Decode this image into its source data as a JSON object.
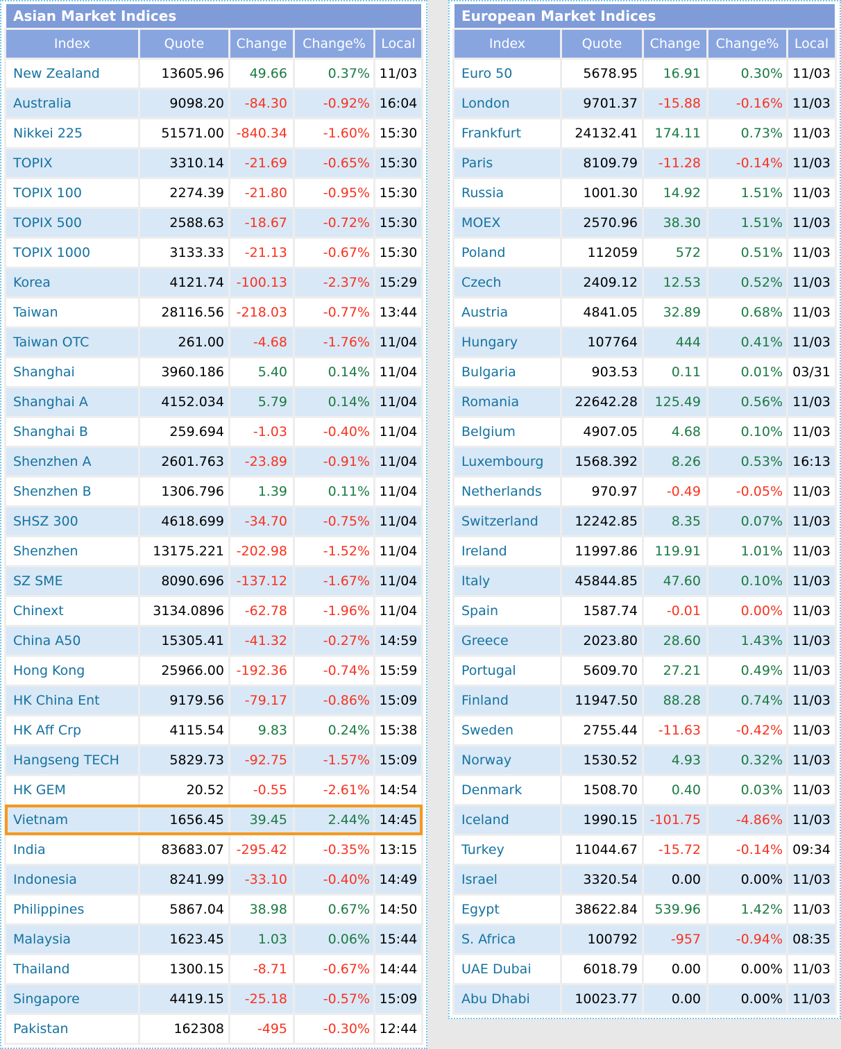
{
  "colors": {
    "page_bg": "#e8e8e8",
    "panel_border": "#6fc4e9",
    "title_bar_bg": "#7f9bd8",
    "header_bg": "#88a5e0",
    "stripe_bg": "#d9e8f6",
    "row_bg": "#ffffff",
    "grid_gap": "#ededed",
    "index_link": "#1472a0",
    "positive": "#1a7a42",
    "negative": "#f8321f",
    "neutral": "#000000",
    "highlight_border": "#f5991c"
  },
  "tables": [
    {
      "title": "Asian Market Indices",
      "columns": [
        "Index",
        "Quote",
        "Change",
        "Change%",
        "Local"
      ],
      "highlighted_index": "Vietnam",
      "rows": [
        {
          "index": "New Zealand",
          "quote": "13605.96",
          "change": "49.66",
          "change_pct": "0.37%",
          "local": "11/03",
          "dir": "up"
        },
        {
          "index": "Australia",
          "quote": "9098.20",
          "change": "-84.30",
          "change_pct": "-0.92%",
          "local": "16:04",
          "dir": "down"
        },
        {
          "index": "Nikkei 225",
          "quote": "51571.00",
          "change": "-840.34",
          "change_pct": "-1.60%",
          "local": "15:30",
          "dir": "down"
        },
        {
          "index": "TOPIX",
          "quote": "3310.14",
          "change": "-21.69",
          "change_pct": "-0.65%",
          "local": "15:30",
          "dir": "down"
        },
        {
          "index": "TOPIX 100",
          "quote": "2274.39",
          "change": "-21.80",
          "change_pct": "-0.95%",
          "local": "15:30",
          "dir": "down"
        },
        {
          "index": "TOPIX 500",
          "quote": "2588.63",
          "change": "-18.67",
          "change_pct": "-0.72%",
          "local": "15:30",
          "dir": "down"
        },
        {
          "index": "TOPIX 1000",
          "quote": "3133.33",
          "change": "-21.13",
          "change_pct": "-0.67%",
          "local": "15:30",
          "dir": "down"
        },
        {
          "index": "Korea",
          "quote": "4121.74",
          "change": "-100.13",
          "change_pct": "-2.37%",
          "local": "15:29",
          "dir": "down"
        },
        {
          "index": "Taiwan",
          "quote": "28116.56",
          "change": "-218.03",
          "change_pct": "-0.77%",
          "local": "13:44",
          "dir": "down"
        },
        {
          "index": "Taiwan OTC",
          "quote": "261.00",
          "change": "-4.68",
          "change_pct": "-1.76%",
          "local": "11/04",
          "dir": "down"
        },
        {
          "index": "Shanghai",
          "quote": "3960.186",
          "change": "5.40",
          "change_pct": "0.14%",
          "local": "11/04",
          "dir": "up"
        },
        {
          "index": "Shanghai A",
          "quote": "4152.034",
          "change": "5.79",
          "change_pct": "0.14%",
          "local": "11/04",
          "dir": "up"
        },
        {
          "index": "Shanghai B",
          "quote": "259.694",
          "change": "-1.03",
          "change_pct": "-0.40%",
          "local": "11/04",
          "dir": "down"
        },
        {
          "index": "Shenzhen A",
          "quote": "2601.763",
          "change": "-23.89",
          "change_pct": "-0.91%",
          "local": "11/04",
          "dir": "down"
        },
        {
          "index": "Shenzhen B",
          "quote": "1306.796",
          "change": "1.39",
          "change_pct": "0.11%",
          "local": "11/04",
          "dir": "up"
        },
        {
          "index": "SHSZ 300",
          "quote": "4618.699",
          "change": "-34.70",
          "change_pct": "-0.75%",
          "local": "11/04",
          "dir": "down"
        },
        {
          "index": "Shenzhen",
          "quote": "13175.221",
          "change": "-202.98",
          "change_pct": "-1.52%",
          "local": "11/04",
          "dir": "down"
        },
        {
          "index": "SZ SME",
          "quote": "8090.696",
          "change": "-137.12",
          "change_pct": "-1.67%",
          "local": "11/04",
          "dir": "down"
        },
        {
          "index": "Chinext",
          "quote": "3134.0896",
          "change": "-62.78",
          "change_pct": "-1.96%",
          "local": "11/04",
          "dir": "down"
        },
        {
          "index": "China A50",
          "quote": "15305.41",
          "change": "-41.32",
          "change_pct": "-0.27%",
          "local": "14:59",
          "dir": "down"
        },
        {
          "index": "Hong Kong",
          "quote": "25966.00",
          "change": "-192.36",
          "change_pct": "-0.74%",
          "local": "15:59",
          "dir": "down"
        },
        {
          "index": "HK China Ent",
          "quote": "9179.56",
          "change": "-79.17",
          "change_pct": "-0.86%",
          "local": "15:09",
          "dir": "down"
        },
        {
          "index": "HK Aff Crp",
          "quote": "4115.54",
          "change": "9.83",
          "change_pct": "0.24%",
          "local": "15:38",
          "dir": "up"
        },
        {
          "index": "Hangseng TECH",
          "quote": "5829.73",
          "change": "-92.75",
          "change_pct": "-1.57%",
          "local": "15:09",
          "dir": "down"
        },
        {
          "index": "HK GEM",
          "quote": "20.52",
          "change": "-0.55",
          "change_pct": "-2.61%",
          "local": "14:54",
          "dir": "down"
        },
        {
          "index": "Vietnam",
          "quote": "1656.45",
          "change": "39.45",
          "change_pct": "2.44%",
          "local": "14:45",
          "dir": "up"
        },
        {
          "index": "India",
          "quote": "83683.07",
          "change": "-295.42",
          "change_pct": "-0.35%",
          "local": "13:15",
          "dir": "down"
        },
        {
          "index": "Indonesia",
          "quote": "8241.99",
          "change": "-33.10",
          "change_pct": "-0.40%",
          "local": "14:49",
          "dir": "down"
        },
        {
          "index": "Philippines",
          "quote": "5867.04",
          "change": "38.98",
          "change_pct": "0.67%",
          "local": "14:50",
          "dir": "up"
        },
        {
          "index": "Malaysia",
          "quote": "1623.45",
          "change": "1.03",
          "change_pct": "0.06%",
          "local": "15:44",
          "dir": "up"
        },
        {
          "index": "Thailand",
          "quote": "1300.15",
          "change": "-8.71",
          "change_pct": "-0.67%",
          "local": "14:44",
          "dir": "down"
        },
        {
          "index": "Singapore",
          "quote": "4419.15",
          "change": "-25.18",
          "change_pct": "-0.57%",
          "local": "15:09",
          "dir": "down"
        },
        {
          "index": "Pakistan",
          "quote": "162308",
          "change": "-495",
          "change_pct": "-0.30%",
          "local": "12:44",
          "dir": "down"
        }
      ]
    },
    {
      "title": "European Market Indices",
      "columns": [
        "Index",
        "Quote",
        "Change",
        "Change%",
        "Local"
      ],
      "highlighted_index": null,
      "rows": [
        {
          "index": "Euro 50",
          "quote": "5678.95",
          "change": "16.91",
          "change_pct": "0.30%",
          "local": "11/03",
          "dir": "up"
        },
        {
          "index": "London",
          "quote": "9701.37",
          "change": "-15.88",
          "change_pct": "-0.16%",
          "local": "11/03",
          "dir": "down"
        },
        {
          "index": "Frankfurt",
          "quote": "24132.41",
          "change": "174.11",
          "change_pct": "0.73%",
          "local": "11/03",
          "dir": "up"
        },
        {
          "index": "Paris",
          "quote": "8109.79",
          "change": "-11.28",
          "change_pct": "-0.14%",
          "local": "11/03",
          "dir": "down"
        },
        {
          "index": "Russia",
          "quote": "1001.30",
          "change": "14.92",
          "change_pct": "1.51%",
          "local": "11/03",
          "dir": "up"
        },
        {
          "index": "MOEX",
          "quote": "2570.96",
          "change": "38.30",
          "change_pct": "1.51%",
          "local": "11/03",
          "dir": "up"
        },
        {
          "index": "Poland",
          "quote": "112059",
          "change": "572",
          "change_pct": "0.51%",
          "local": "11/03",
          "dir": "up"
        },
        {
          "index": "Czech",
          "quote": "2409.12",
          "change": "12.53",
          "change_pct": "0.52%",
          "local": "11/03",
          "dir": "up"
        },
        {
          "index": "Austria",
          "quote": "4841.05",
          "change": "32.89",
          "change_pct": "0.68%",
          "local": "11/03",
          "dir": "up"
        },
        {
          "index": "Hungary",
          "quote": "107764",
          "change": "444",
          "change_pct": "0.41%",
          "local": "11/03",
          "dir": "up"
        },
        {
          "index": "Bulgaria",
          "quote": "903.53",
          "change": "0.11",
          "change_pct": "0.01%",
          "local": "03/31",
          "dir": "up"
        },
        {
          "index": "Romania",
          "quote": "22642.28",
          "change": "125.49",
          "change_pct": "0.56%",
          "local": "11/03",
          "dir": "up"
        },
        {
          "index": "Belgium",
          "quote": "4907.05",
          "change": "4.68",
          "change_pct": "0.10%",
          "local": "11/03",
          "dir": "up"
        },
        {
          "index": "Luxembourg",
          "quote": "1568.392",
          "change": "8.26",
          "change_pct": "0.53%",
          "local": "16:13",
          "dir": "up"
        },
        {
          "index": "Netherlands",
          "quote": "970.97",
          "change": "-0.49",
          "change_pct": "-0.05%",
          "local": "11/03",
          "dir": "down"
        },
        {
          "index": "Switzerland",
          "quote": "12242.85",
          "change": "8.35",
          "change_pct": "0.07%",
          "local": "11/03",
          "dir": "up"
        },
        {
          "index": "Ireland",
          "quote": "11997.86",
          "change": "119.91",
          "change_pct": "1.01%",
          "local": "11/03",
          "dir": "up"
        },
        {
          "index": "Italy",
          "quote": "45844.85",
          "change": "47.60",
          "change_pct": "0.10%",
          "local": "11/03",
          "dir": "up"
        },
        {
          "index": "Spain",
          "quote": "1587.74",
          "change": "-0.01",
          "change_pct": "0.00%",
          "local": "11/03",
          "dir": "down"
        },
        {
          "index": "Greece",
          "quote": "2023.80",
          "change": "28.60",
          "change_pct": "1.43%",
          "local": "11/03",
          "dir": "up"
        },
        {
          "index": "Portugal",
          "quote": "5609.70",
          "change": "27.21",
          "change_pct": "0.49%",
          "local": "11/03",
          "dir": "up"
        },
        {
          "index": "Finland",
          "quote": "11947.50",
          "change": "88.28",
          "change_pct": "0.74%",
          "local": "11/03",
          "dir": "up"
        },
        {
          "index": "Sweden",
          "quote": "2755.44",
          "change": "-11.63",
          "change_pct": "-0.42%",
          "local": "11/03",
          "dir": "down"
        },
        {
          "index": "Norway",
          "quote": "1530.52",
          "change": "4.93",
          "change_pct": "0.32%",
          "local": "11/03",
          "dir": "up"
        },
        {
          "index": "Denmark",
          "quote": "1508.70",
          "change": "0.40",
          "change_pct": "0.03%",
          "local": "11/03",
          "dir": "up"
        },
        {
          "index": "Iceland",
          "quote": "1990.15",
          "change": "-101.75",
          "change_pct": "-4.86%",
          "local": "11/03",
          "dir": "down"
        },
        {
          "index": "Turkey",
          "quote": "11044.67",
          "change": "-15.72",
          "change_pct": "-0.14%",
          "local": "09:34",
          "dir": "down"
        },
        {
          "index": "Israel",
          "quote": "3320.54",
          "change": "0.00",
          "change_pct": "0.00%",
          "local": "11/03",
          "dir": "flat"
        },
        {
          "index": "Egypt",
          "quote": "38622.84",
          "change": "539.96",
          "change_pct": "1.42%",
          "local": "11/03",
          "dir": "up"
        },
        {
          "index": "S. Africa",
          "quote": "100792",
          "change": "-957",
          "change_pct": "-0.94%",
          "local": "08:35",
          "dir": "down"
        },
        {
          "index": "UAE Dubai",
          "quote": "6018.79",
          "change": "0.00",
          "change_pct": "0.00%",
          "local": "11/03",
          "dir": "flat"
        },
        {
          "index": "Abu Dhabi",
          "quote": "10023.77",
          "change": "0.00",
          "change_pct": "0.00%",
          "local": "11/03",
          "dir": "flat"
        }
      ]
    }
  ]
}
